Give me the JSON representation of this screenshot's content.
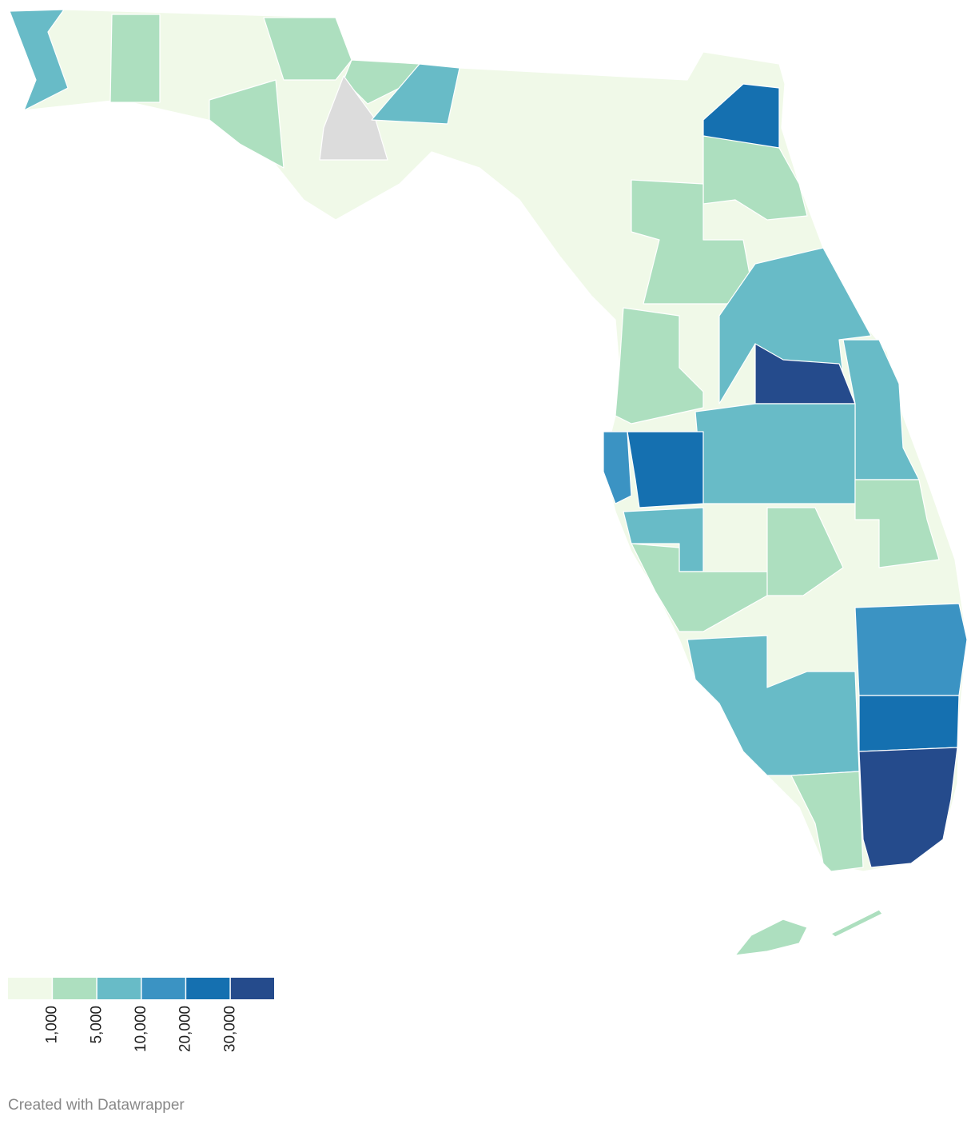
{
  "legend": {
    "colors": [
      "#f0f9e8",
      "#addfbf",
      "#68bbc7",
      "#3b93c3",
      "#1570b0",
      "#254b8c"
    ],
    "missing_color": "#dcdcdc",
    "ticks": [
      {
        "value": 1000,
        "label": "1,000"
      },
      {
        "value": 5000,
        "label": "5,000"
      },
      {
        "value": 10000,
        "label": "10,000"
      },
      {
        "value": 20000,
        "label": "20,000"
      },
      {
        "value": 30000,
        "label": "30,000"
      }
    ]
  },
  "footer": "Created with Datawrapper"
}
